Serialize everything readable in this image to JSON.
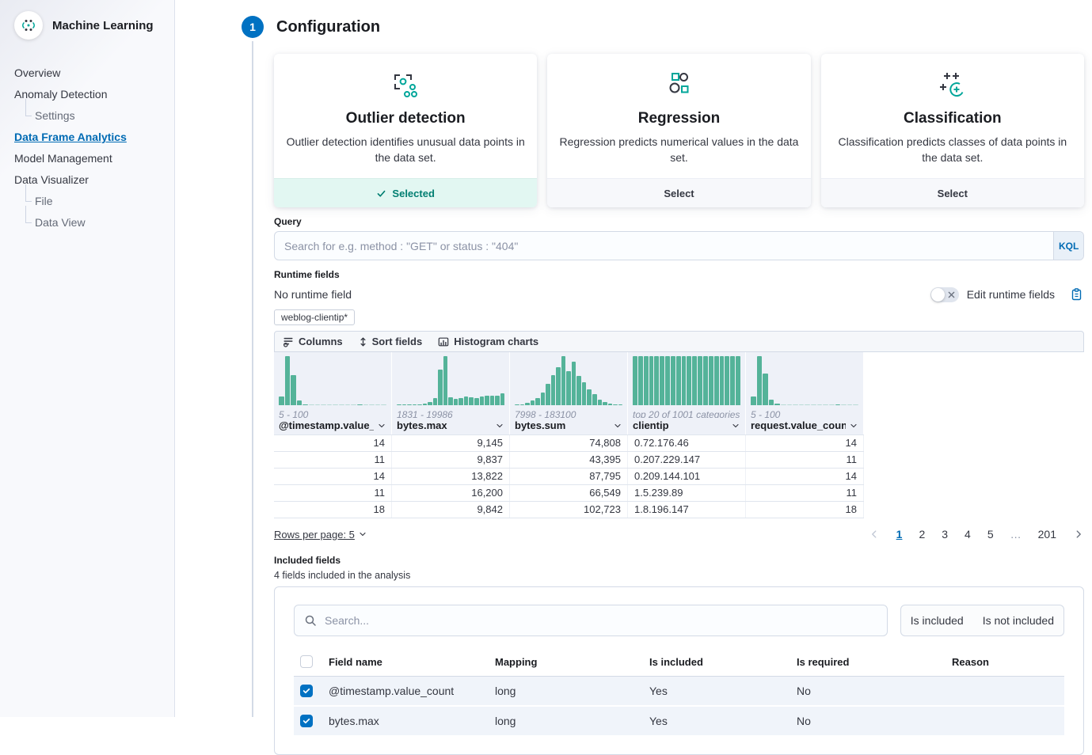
{
  "colors": {
    "primary": "#0071c2",
    "link": "#006bb4",
    "success": "#007e71",
    "success_bg": "#e2f7f2",
    "histogram_bar": "#54b399"
  },
  "sidebar": {
    "title": "Machine Learning",
    "items": [
      {
        "label": "Overview",
        "level": 0,
        "active": false
      },
      {
        "label": "Anomaly Detection",
        "level": 0,
        "active": false
      },
      {
        "label": "Settings",
        "level": 1,
        "active": false
      },
      {
        "label": "Data Frame Analytics",
        "level": 0,
        "active": true
      },
      {
        "label": "Model Management",
        "level": 0,
        "active": false
      },
      {
        "label": "Data Visualizer",
        "level": 0,
        "active": false
      },
      {
        "label": "File",
        "level": 1,
        "active": false
      },
      {
        "label": "Data View",
        "level": 1,
        "active": false
      }
    ]
  },
  "step": {
    "number": "1",
    "title": "Configuration"
  },
  "cards": [
    {
      "icon": "outlier-detection-icon",
      "title": "Outlier detection",
      "description": "Outlier detection identifies unusual data points in the data set.",
      "footer": "Selected",
      "selected": true
    },
    {
      "icon": "regression-icon",
      "title": "Regression",
      "description": "Regression predicts numerical values in the data set.",
      "footer": "Select",
      "selected": false
    },
    {
      "icon": "classification-icon",
      "title": "Classification",
      "description": "Classification predicts classes of data points in the data set.",
      "footer": "Select",
      "selected": false
    }
  ],
  "query": {
    "label": "Query",
    "placeholder": "Search for e.g. method : \"GET\" or status : \"404\"",
    "lang_button": "KQL"
  },
  "runtime_fields": {
    "label": "Runtime fields",
    "status": "No runtime field",
    "toggle_label": "Edit runtime fields",
    "index_badge": "weblog-clientip*"
  },
  "grid": {
    "toolbar": [
      {
        "label": "Columns",
        "icon": "columns-icon"
      },
      {
        "label": "Sort fields",
        "icon": "sort-fields-icon"
      },
      {
        "label": "Histogram charts",
        "icon": "histogram-charts-icon"
      }
    ],
    "columns": [
      {
        "name": "@timestamp.value_count",
        "range": "5 - 100",
        "align": "right",
        "histogram": [
          18,
          100,
          62,
          10,
          2,
          0,
          0,
          0,
          0,
          0,
          0,
          0,
          0,
          1,
          0,
          0,
          0,
          0
        ]
      },
      {
        "name": "bytes.max",
        "range": "1831 - 19986",
        "align": "right",
        "histogram": [
          1,
          1,
          1,
          2,
          2,
          3,
          6,
          15,
          72,
          100,
          16,
          13,
          15,
          17,
          16,
          15,
          17,
          20,
          20,
          20,
          24
        ]
      },
      {
        "name": "bytes.sum",
        "range": "7998 - 183100",
        "align": "right",
        "histogram": [
          1,
          2,
          5,
          10,
          14,
          26,
          44,
          62,
          78,
          100,
          70,
          88,
          60,
          46,
          33,
          23,
          12,
          7,
          4,
          2,
          1
        ]
      },
      {
        "name": "clientip",
        "range": "top 20 of 1001 categories",
        "align": "left",
        "histogram": [
          100,
          100,
          100,
          100,
          100,
          100,
          100,
          100,
          100,
          100,
          100,
          100,
          100,
          100,
          100,
          100,
          100,
          100,
          100,
          100
        ]
      },
      {
        "name": "request.value_count",
        "range": "5 - 100",
        "align": "right",
        "histogram": [
          18,
          100,
          64,
          12,
          3,
          0,
          0,
          0,
          0,
          0,
          0,
          0,
          0,
          0,
          1,
          0,
          0,
          0
        ]
      }
    ],
    "rows": [
      [
        "14",
        "9,145",
        "74,808",
        "0.72.176.46",
        "14"
      ],
      [
        "11",
        "9,837",
        "43,395",
        "0.207.229.147",
        "11"
      ],
      [
        "14",
        "13,822",
        "87,795",
        "0.209.144.101",
        "14"
      ],
      [
        "11",
        "16,200",
        "66,549",
        "1.5.239.89",
        "11"
      ],
      [
        "18",
        "9,842",
        "102,723",
        "1.8.196.147",
        "18"
      ]
    ],
    "rows_per_page_label": "Rows per page: 5",
    "pagination": {
      "pages": [
        "1",
        "2",
        "3",
        "4",
        "5",
        "…",
        "201"
      ],
      "active": "1"
    }
  },
  "included_fields": {
    "label": "Included fields",
    "subtitle": "4 fields included in the analysis",
    "search_placeholder": "Search...",
    "filters": [
      "Is included",
      "Is not included"
    ],
    "table": {
      "headers": [
        "Field name",
        "Mapping",
        "Is included",
        "Is required",
        "Reason"
      ],
      "rows": [
        {
          "field": "@timestamp.value_count",
          "mapping": "long",
          "included": "Yes",
          "required": "No",
          "reason": "",
          "checked": true
        },
        {
          "field": "bytes.max",
          "mapping": "long",
          "included": "Yes",
          "required": "No",
          "reason": "",
          "checked": true
        }
      ]
    }
  }
}
